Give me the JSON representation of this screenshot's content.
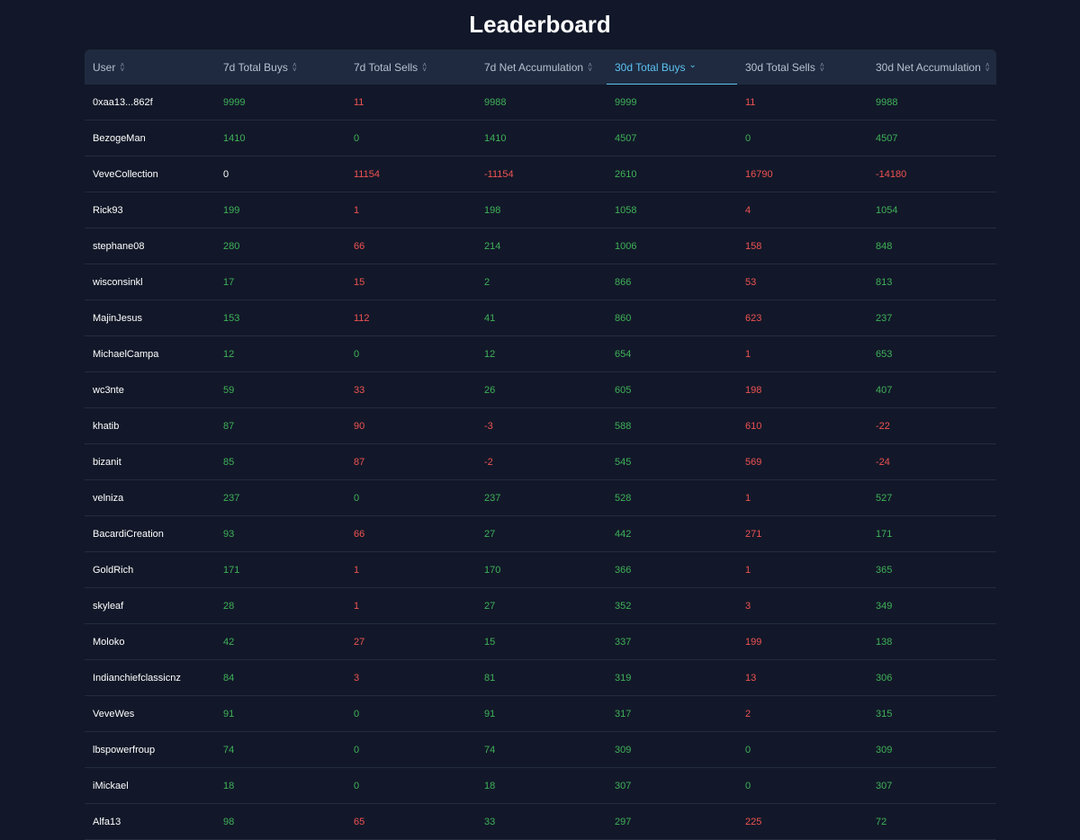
{
  "page": {
    "title": "Leaderboard"
  },
  "colors": {
    "background": "#121829",
    "header_bg": "#1f2a40",
    "positive": "#3fb158",
    "negative": "#ef5252",
    "active_accent": "#5cc3f2"
  },
  "table": {
    "columns": [
      {
        "label": "User",
        "sort_icon": "sort-both-icon",
        "active": false
      },
      {
        "label": "7d Total Buys",
        "sort_icon": "sort-both-icon",
        "active": false
      },
      {
        "label": "7d Total Sells",
        "sort_icon": "sort-both-icon",
        "active": false
      },
      {
        "label": "7d Net Accumulation",
        "sort_icon": "sort-both-icon",
        "active": false
      },
      {
        "label": "30d Total Buys",
        "sort_icon": "sort-desc-icon",
        "active": true
      },
      {
        "label": "30d Total Sells",
        "sort_icon": "sort-both-icon",
        "active": false
      },
      {
        "label": "30d Net Accumulation",
        "sort_icon": "sort-both-icon",
        "active": false
      }
    ],
    "rows": [
      {
        "user": "0xaa13...862f",
        "buys7": "9999",
        "sells7": "11",
        "net7": "9988",
        "buys30": "9999",
        "sells30": "11",
        "net30": "9988"
      },
      {
        "user": "BezogeMan",
        "buys7": "1410",
        "sells7": "0",
        "net7": "1410",
        "buys30": "4507",
        "sells30": "0",
        "net30": "4507"
      },
      {
        "user": "VeveCollection",
        "buys7": "0",
        "sells7": "11154",
        "net7": "-11154",
        "buys30": "2610",
        "sells30": "16790",
        "net30": "-14180"
      },
      {
        "user": "Rick93",
        "buys7": "199",
        "sells7": "1",
        "net7": "198",
        "buys30": "1058",
        "sells30": "4",
        "net30": "1054"
      },
      {
        "user": "stephane08",
        "buys7": "280",
        "sells7": "66",
        "net7": "214",
        "buys30": "1006",
        "sells30": "158",
        "net30": "848"
      },
      {
        "user": "wisconsinkl",
        "buys7": "17",
        "sells7": "15",
        "net7": "2",
        "buys30": "866",
        "sells30": "53",
        "net30": "813"
      },
      {
        "user": "MajinJesus",
        "buys7": "153",
        "sells7": "112",
        "net7": "41",
        "buys30": "860",
        "sells30": "623",
        "net30": "237"
      },
      {
        "user": "MichaelCampa",
        "buys7": "12",
        "sells7": "0",
        "net7": "12",
        "buys30": "654",
        "sells30": "1",
        "net30": "653"
      },
      {
        "user": "wc3nte",
        "buys7": "59",
        "sells7": "33",
        "net7": "26",
        "buys30": "605",
        "sells30": "198",
        "net30": "407"
      },
      {
        "user": "khatib",
        "buys7": "87",
        "sells7": "90",
        "net7": "-3",
        "buys30": "588",
        "sells30": "610",
        "net30": "-22"
      },
      {
        "user": "bizanit",
        "buys7": "85",
        "sells7": "87",
        "net7": "-2",
        "buys30": "545",
        "sells30": "569",
        "net30": "-24"
      },
      {
        "user": "velniza",
        "buys7": "237",
        "sells7": "0",
        "net7": "237",
        "buys30": "528",
        "sells30": "1",
        "net30": "527"
      },
      {
        "user": "BacardiCreation",
        "buys7": "93",
        "sells7": "66",
        "net7": "27",
        "buys30": "442",
        "sells30": "271",
        "net30": "171"
      },
      {
        "user": "GoldRich",
        "buys7": "171",
        "sells7": "1",
        "net7": "170",
        "buys30": "366",
        "sells30": "1",
        "net30": "365"
      },
      {
        "user": "skyleaf",
        "buys7": "28",
        "sells7": "1",
        "net7": "27",
        "buys30": "352",
        "sells30": "3",
        "net30": "349"
      },
      {
        "user": "Moloko",
        "buys7": "42",
        "sells7": "27",
        "net7": "15",
        "buys30": "337",
        "sells30": "199",
        "net30": "138"
      },
      {
        "user": "Indianchiefclassicnz",
        "buys7": "84",
        "sells7": "3",
        "net7": "81",
        "buys30": "319",
        "sells30": "13",
        "net30": "306"
      },
      {
        "user": "VeveWes",
        "buys7": "91",
        "sells7": "0",
        "net7": "91",
        "buys30": "317",
        "sells30": "2",
        "net30": "315"
      },
      {
        "user": "lbspowerfroup",
        "buys7": "74",
        "sells7": "0",
        "net7": "74",
        "buys30": "309",
        "sells30": "0",
        "net30": "309"
      },
      {
        "user": "iMickael",
        "buys7": "18",
        "sells7": "0",
        "net7": "18",
        "buys30": "307",
        "sells30": "0",
        "net30": "307"
      },
      {
        "user": "Alfa13",
        "buys7": "98",
        "sells7": "65",
        "net7": "33",
        "buys30": "297",
        "sells30": "225",
        "net30": "72"
      }
    ]
  }
}
